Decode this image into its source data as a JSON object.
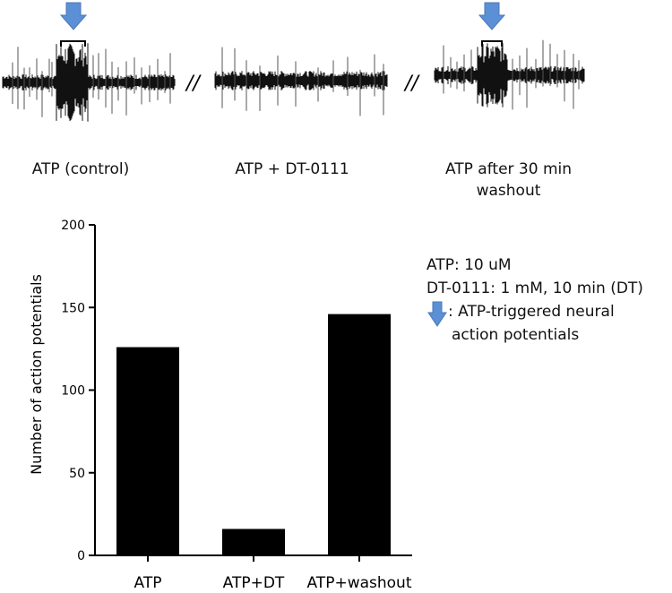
{
  "traces": [
    {
      "label": "ATP (control)",
      "stimulus_marker": true
    },
    {
      "label": "ATP + DT-0111",
      "stimulus_marker": false
    },
    {
      "label_line1": "ATP after 30 min",
      "label_line2": "washout",
      "stimulus_marker": true
    }
  ],
  "trace_separator": "//",
  "legend": {
    "atp": "ATP: 10 uM",
    "dt": "DT-0111:  1 mM, 10 min (DT)",
    "arrow_line1": ": ATP-triggered neural",
    "arrow_line2": "action potentials",
    "arrow_icon": "down-arrow-icon",
    "arrow_color": "#5b8fd6"
  },
  "chart_data": {
    "type": "bar",
    "categories": [
      "ATP",
      "ATP+DT",
      "ATP+washout"
    ],
    "values": [
      126,
      16,
      146
    ],
    "ylabel": "Number  of action potentials",
    "ylim": [
      0,
      200
    ],
    "yticks": [
      "0",
      "50",
      "100",
      "150",
      "200"
    ],
    "bar_color": "#000000",
    "grid": false
  }
}
